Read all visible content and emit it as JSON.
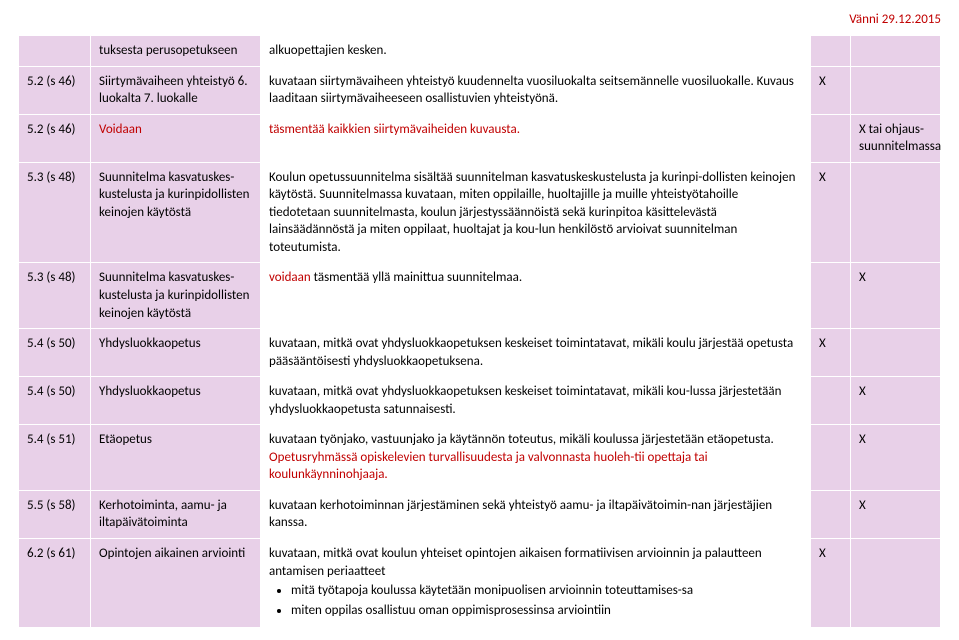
{
  "header_date": "Vänni 29.12.2015",
  "colors": {
    "row_shade": "#e8d0e8",
    "red_text": "#c00000",
    "border": "#ffffff"
  },
  "rows": [
    {
      "ref": "",
      "title": "tuksesta perusopetukseen",
      "desc": "alkuopettajien kesken.",
      "x1": "",
      "x2": ""
    },
    {
      "ref": "5.2 (s 46)",
      "title": "Siirtymävaiheen yhteistyö 6. luokalta 7. luokalle",
      "desc": "kuvataan siirtymävaiheen yhteistyö kuudennelta vuosiluokalta seitsemännelle vuosiluokalle. Kuvaus laaditaan siirtymävaiheeseen osallistuvien yhteistyönä.",
      "x1": "X",
      "x2": ""
    },
    {
      "ref": "5.2 (s 46)",
      "title_red": "Voidaan",
      "desc_prefix_red": "täsmentää kaikkien siirtymävaiheiden kuvausta.",
      "x1": "",
      "x2": "X tai ohjaus-suunnitelmassa"
    },
    {
      "ref": "5.3 (s 48)",
      "title": "Suunnitelma kasvatuskes-kustelusta ja kurinpidollisten keinojen käytöstä",
      "desc": "Koulun opetussuunnitelma sisältää suunnitelman kasvatuskeskustelusta ja kurinpi-dollisten keinojen käytöstä. Suunnitelmassa kuvataan, miten oppilaille, huoltajille ja muille yhteistyötahoille tiedotetaan suunnitelmasta, koulun järjestyssäännöistä sekä kurinpitoa käsittelevästä lainsäädännöstä ja miten oppilaat, huoltajat ja kou-lun henkilöstö arvioivat suunnitelman toteutumista.",
      "x1": "X",
      "x2": ""
    },
    {
      "ref": "5.3 (s 48)",
      "title": "Suunnitelma kasvatuskes-kustelusta ja kurinpidollisten keinojen käytöstä",
      "desc_prefix_red": "voidaan",
      "desc_rest": " täsmentää yllä mainittua suunnitelmaa.",
      "x1": "",
      "x2": "X"
    },
    {
      "ref": "5.4 (s 50)",
      "title": "Yhdysluokkaopetus",
      "desc": "kuvataan, mitkä ovat yhdysluokkaopetuksen keskeiset toimintatavat, mikäli koulu järjestää opetusta pääsääntöisesti yhdysluokkaopetuksena.",
      "x1": "X",
      "x2": ""
    },
    {
      "ref": "5.4 (s 50)",
      "title": "Yhdysluokkaopetus",
      "desc": "kuvataan, mitkä ovat yhdysluokkaopetuksen keskeiset toimintatavat, mikäli kou-lussa järjestetään yhdysluokkaopetusta satunnaisesti.",
      "x1": "",
      "x2": "X"
    },
    {
      "ref": "5.4 (s 51)",
      "title": "Etäopetus",
      "desc_plain": "kuvataan työnjako, vastuunjako ja käytännön toteutus, mikäli koulussa järjestetään etäopetusta. ",
      "desc_red": "Opetusryhmässä opiskelevien turvallisuudesta ja valvonnasta huoleh-tii opettaja tai koulunkäynninohjaaja.",
      "x1": "",
      "x2": "X"
    },
    {
      "ref": "5.5 (s 58)",
      "title": "Kerhotoiminta, aamu- ja iltapäivätoiminta",
      "desc": "kuvataan kerhotoiminnan järjestäminen sekä yhteistyö aamu- ja iltapäivätoimin-nan järjestäjien kanssa.",
      "x1": "",
      "x2": "X"
    },
    {
      "ref": "6.2 (s 61)",
      "title": "Opintojen aikainen arviointi",
      "desc": "kuvataan, mitkä ovat koulun yhteiset opintojen aikaisen formatiivisen arvioinnin ja palautteen antamisen periaatteet",
      "bullets": [
        "mitä työtapoja koulussa käytetään monipuolisen arvioinnin toteuttamises-sa",
        "miten oppilas osallistuu oman oppimisprosessinsa arviointiin"
      ],
      "x1": "X",
      "x2": ""
    }
  ]
}
